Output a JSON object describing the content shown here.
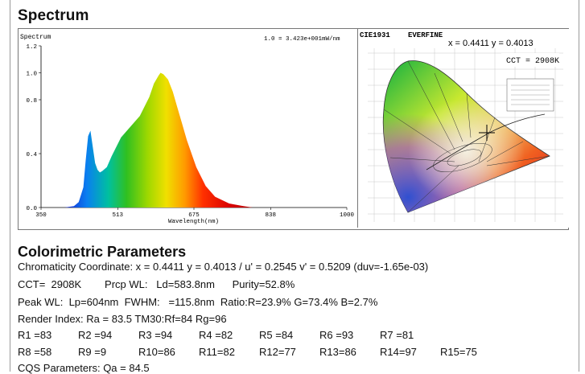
{
  "spectrum_title": "Spectrum",
  "spectrum_plot": {
    "ylabel": "Spectrum",
    "scale_note": "1.0 = 3.423e+001mW/nm",
    "xlabel": "Wavelength(nm)",
    "x_ticks": [
      "350",
      "513",
      "675",
      "838",
      "1000"
    ],
    "y_ticks": [
      "0.0",
      "0.4",
      "0.8",
      "1.0",
      "1.2"
    ]
  },
  "cie_panel": {
    "label": "CIE1931",
    "brand": "EVERFINE",
    "xy": "x = 0.4411 y = 0.4013",
    "cct": "CCT = 2908K"
  },
  "colorimetric": {
    "title": "Colorimetric Parameters",
    "chromaticity": "Chromaticity Coordinate: x = 0.4411 y = 0.4013 / u' = 0.2545 v' = 0.5209 (duv=-1.65e-03)",
    "cct_line": "CCT=  2908K        Prcp WL:   Ld=583.8nm      Purity=52.8%",
    "peak_line": "Peak WL:  Lp=604nm  FWHM:   =115.8nm  Ratio:R=23.9% G=73.4% B=2.7%",
    "render_line": "Render Index: Ra = 83.5 TM30:Rf=84 Rg=96",
    "r_row1": [
      "R1 =83",
      "R2 =94",
      "R3 =94",
      "R4 =82",
      "R5 =84",
      "R6 =93",
      "R7 =81"
    ],
    "r_row2": [
      "R8 =58",
      "R9 =9",
      "R10=86",
      "R11=82",
      "R12=77",
      "R13=86",
      "R14=97",
      "R15=75"
    ],
    "cqs_line": "CQS Parameters: Qa = 84.5"
  },
  "chart_data": {
    "type": "area",
    "title": "Spectrum",
    "xlabel": "Wavelength(nm)",
    "ylabel": "Spectrum",
    "xlim": [
      350,
      1000
    ],
    "ylim": [
      0,
      1.2
    ],
    "grid": false,
    "x": [
      350,
      380,
      400,
      420,
      430,
      440,
      445,
      450,
      455,
      460,
      465,
      470,
      475,
      480,
      490,
      500,
      520,
      540,
      560,
      580,
      590,
      600,
      604,
      610,
      620,
      630,
      640,
      650,
      660,
      680,
      700,
      720,
      750,
      780,
      800,
      850,
      900,
      1000
    ],
    "values": [
      0.0,
      0.0,
      0.0,
      0.01,
      0.04,
      0.15,
      0.35,
      0.53,
      0.57,
      0.45,
      0.33,
      0.28,
      0.26,
      0.27,
      0.3,
      0.38,
      0.52,
      0.6,
      0.68,
      0.82,
      0.92,
      0.98,
      1.0,
      0.99,
      0.95,
      0.86,
      0.74,
      0.62,
      0.5,
      0.3,
      0.16,
      0.08,
      0.03,
      0.01,
      0.0,
      0.0,
      0.0,
      0.0
    ]
  }
}
